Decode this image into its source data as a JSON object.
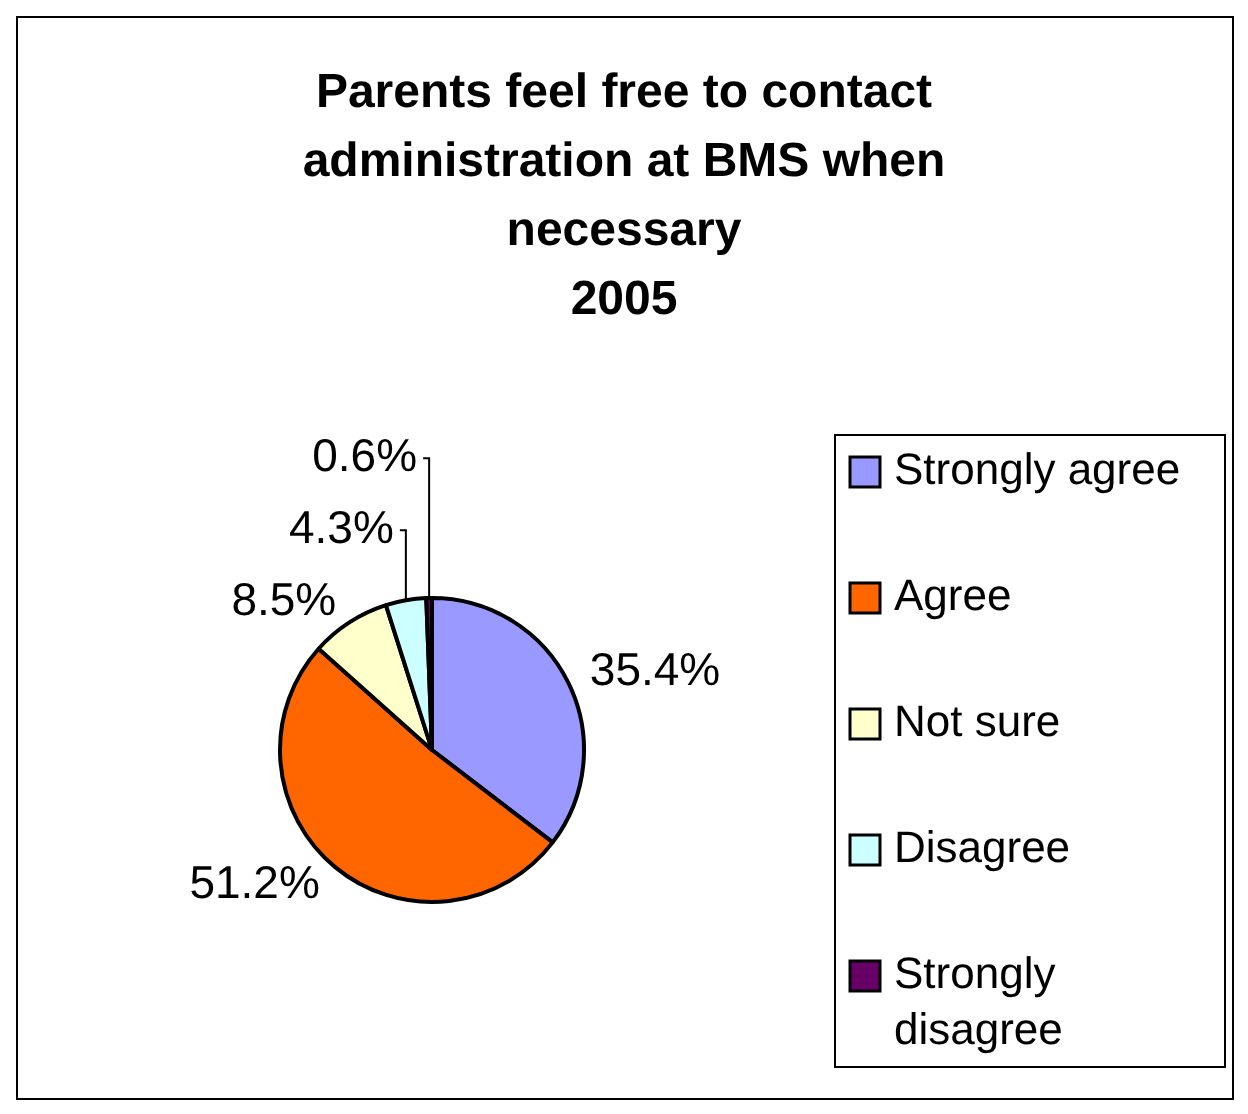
{
  "chart_data": {
    "type": "pie",
    "title": "Parents feel free to contact administration at BMS when necessary",
    "subtitle": "2005",
    "categories": [
      "Strongly agree",
      "Agree",
      "Not sure",
      "Disagree",
      "Strongly disagree"
    ],
    "values": [
      35.4,
      51.2,
      8.5,
      4.3,
      0.6
    ],
    "colors": [
      "#9999ff",
      "#ff6600",
      "#ffffcc",
      "#ccffff",
      "#660066"
    ],
    "value_labels": [
      "35.4%",
      "51.2%",
      "8.5%",
      "4.3%",
      "0.6%"
    ],
    "legend": "right"
  }
}
